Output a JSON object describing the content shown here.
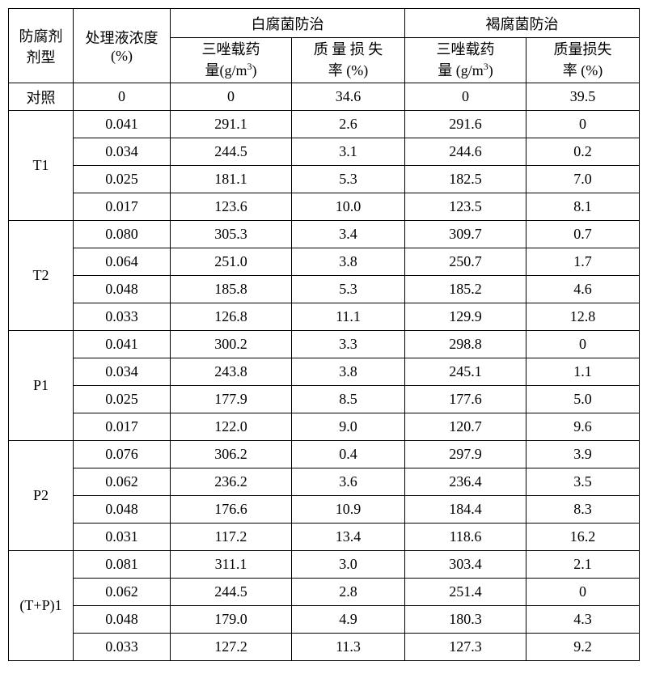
{
  "headers": {
    "type": "防腐剂\n剂型",
    "concentration": "处理液浓度\n(%)",
    "white_group": "白腐菌防治",
    "brown_group": "褐腐菌防治",
    "load_label": "三唑载药\n量(g/m³)",
    "loss_label": "质 量 损 失\n率 (%)"
  },
  "groups": [
    {
      "name": "对照",
      "rows": [
        {
          "conc": "0",
          "w_load": "0",
          "w_loss": "34.6",
          "b_load": "0",
          "b_loss": "39.5"
        }
      ]
    },
    {
      "name": "T1",
      "rows": [
        {
          "conc": "0.041",
          "w_load": "291.1",
          "w_loss": "2.6",
          "b_load": "291.6",
          "b_loss": "0"
        },
        {
          "conc": "0.034",
          "w_load": "244.5",
          "w_loss": "3.1",
          "b_load": "244.6",
          "b_loss": "0.2"
        },
        {
          "conc": "0.025",
          "w_load": "181.1",
          "w_loss": "5.3",
          "b_load": "182.5",
          "b_loss": "7.0"
        },
        {
          "conc": "0.017",
          "w_load": "123.6",
          "w_loss": "10.0",
          "b_load": "123.5",
          "b_loss": "8.1"
        }
      ]
    },
    {
      "name": "T2",
      "rows": [
        {
          "conc": "0.080",
          "w_load": "305.3",
          "w_loss": "3.4",
          "b_load": "309.7",
          "b_loss": "0.7"
        },
        {
          "conc": "0.064",
          "w_load": "251.0",
          "w_loss": "3.8",
          "b_load": "250.7",
          "b_loss": "1.7"
        },
        {
          "conc": "0.048",
          "w_load": "185.8",
          "w_loss": "5.3",
          "b_load": "185.2",
          "b_loss": "4.6"
        },
        {
          "conc": "0.033",
          "w_load": "126.8",
          "w_loss": "11.1",
          "b_load": "129.9",
          "b_loss": "12.8"
        }
      ]
    },
    {
      "name": "P1",
      "rows": [
        {
          "conc": "0.041",
          "w_load": "300.2",
          "w_loss": "3.3",
          "b_load": "298.8",
          "b_loss": "0"
        },
        {
          "conc": "0.034",
          "w_load": "243.8",
          "w_loss": "3.8",
          "b_load": "245.1",
          "b_loss": "1.1"
        },
        {
          "conc": "0.025",
          "w_load": "177.9",
          "w_loss": "8.5",
          "b_load": "177.6",
          "b_loss": "5.0"
        },
        {
          "conc": "0.017",
          "w_load": "122.0",
          "w_loss": "9.0",
          "b_load": "120.7",
          "b_loss": "9.6"
        }
      ]
    },
    {
      "name": "P2",
      "rows": [
        {
          "conc": "0.076",
          "w_load": "306.2",
          "w_loss": "0.4",
          "b_load": "297.9",
          "b_loss": "3.9"
        },
        {
          "conc": "0.062",
          "w_load": "236.2",
          "w_loss": "3.6",
          "b_load": "236.4",
          "b_loss": "3.5"
        },
        {
          "conc": "0.048",
          "w_load": "176.6",
          "w_loss": "10.9",
          "b_load": "184.4",
          "b_loss": "8.3"
        },
        {
          "conc": "0.031",
          "w_load": "117.2",
          "w_loss": "13.4",
          "b_load": "118.6",
          "b_loss": "16.2"
        }
      ]
    },
    {
      "name": "(T+P)1",
      "rows": [
        {
          "conc": "0.081",
          "w_load": "311.1",
          "w_loss": "3.0",
          "b_load": "303.4",
          "b_loss": "2.1"
        },
        {
          "conc": "0.062",
          "w_load": "244.5",
          "w_loss": "2.8",
          "b_load": "251.4",
          "b_loss": "0"
        },
        {
          "conc": "0.048",
          "w_load": "179.0",
          "w_loss": "4.9",
          "b_load": "180.3",
          "b_loss": "4.3"
        },
        {
          "conc": "0.033",
          "w_load": "127.2",
          "w_loss": "11.3",
          "b_load": "127.3",
          "b_loss": "9.2"
        }
      ]
    }
  ]
}
